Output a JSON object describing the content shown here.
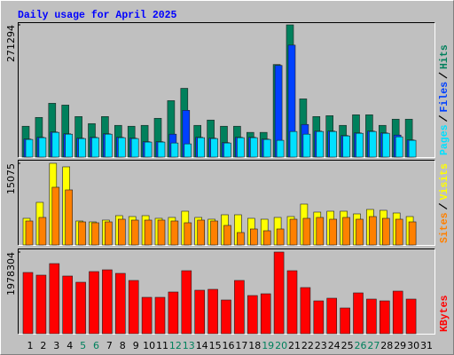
{
  "chart_data": {
    "type": "bar",
    "title": "Daily usage for April 2025",
    "categories": [
      "1",
      "2",
      "3",
      "4",
      "5",
      "6",
      "7",
      "8",
      "9",
      "10",
      "11",
      "12",
      "13",
      "14",
      "15",
      "16",
      "17",
      "18",
      "19",
      "20",
      "21",
      "22",
      "23",
      "24",
      "25",
      "26",
      "27",
      "28",
      "29",
      "30",
      "31"
    ],
    "category_colors": [
      "#000000",
      "#000000",
      "#000000",
      "#000000",
      "#00805C",
      "#00805C",
      "#000000",
      "#000000",
      "#000000",
      "#000000",
      "#000000",
      "#00805C",
      "#00805C",
      "#000000",
      "#000000",
      "#000000",
      "#000000",
      "#000000",
      "#00805C",
      "#00805C",
      "#000000",
      "#000000",
      "#000000",
      "#000000",
      "#000000",
      "#00805C",
      "#00805C",
      "#000000",
      "#000000",
      "#000000",
      "#000000"
    ],
    "panels": [
      {
        "ylim": [
          0,
          271294
        ],
        "yticks": [
          271294
        ],
        "series": [
          {
            "name": "Hits",
            "color": "#00805C",
            "values": [
              63300,
              81400,
              110400,
              106700,
              83200,
              68700,
              83200,
              65100,
              63300,
              65100,
              79600,
              115800,
              141100,
              65100,
              76000,
              63300,
              63300,
              50700,
              50700,
              189900,
              271294,
              119400,
              83200,
              85000,
              65100,
              86800,
              86800,
              65100,
              77800,
              77800,
              null
            ]
          },
          {
            "name": "Files",
            "color": "#0040FF",
            "values": [
              37000,
              40600,
              51500,
              47800,
              38800,
              40600,
              47800,
              40600,
              38800,
              31600,
              31600,
              47000,
              95900,
              40600,
              38800,
              29700,
              40600,
              40600,
              37000,
              188100,
              229700,
              66900,
              53300,
              53300,
              44200,
              49600,
              53300,
              49600,
              45200,
              35200,
              null
            ]
          },
          {
            "name": "Pages",
            "color": "#00E0FF",
            "values": [
              36200,
              39800,
              50700,
              47000,
              38000,
              39800,
              47000,
              39800,
              38000,
              30800,
              30800,
              28900,
              27100,
              39800,
              38000,
              28900,
              39800,
              39800,
              36200,
              34400,
              52500,
              47000,
              52500,
              52500,
              43400,
              48800,
              52500,
              48800,
              41600,
              34400,
              null
            ]
          }
        ]
      },
      {
        "ylim": [
          0,
          15075
        ],
        "yticks": [
          15075
        ],
        "series": [
          {
            "name": "Visits",
            "color": "#FFFF00",
            "values": [
              4917,
              7867,
              15075,
              14423,
              4425,
              4261,
              4589,
              5409,
              5245,
              5409,
              4917,
              5081,
              6228,
              5081,
              4753,
              5573,
              5573,
              4917,
              4753,
              5081,
              5245,
              7539,
              6064,
              6228,
              6228,
              5737,
              6556,
              6392,
              5900,
              5245,
              null
            ]
          },
          {
            "name": "Sites",
            "color": "#FF8000",
            "values": [
              4425,
              5081,
              10654,
              10162,
              4261,
              4098,
              4261,
              4753,
              4589,
              4589,
              4589,
              4425,
              4098,
              4589,
              4425,
              3606,
              2295,
              2950,
              2622,
              2950,
              4753,
              4917,
              5081,
              4753,
              5081,
              4753,
              5245,
              4917,
              4753,
              4261,
              null
            ]
          }
        ]
      },
      {
        "ylim": [
          0,
          1978304
        ],
        "yticks": [
          1978304
        ],
        "series": [
          {
            "name": "KBytes",
            "color": "#FF0000",
            "values": [
              1483700,
              1419200,
              1698700,
              1397700,
              1247200,
              1505200,
              1548200,
              1462200,
              1290200,
              881600,
              881600,
              1010600,
              1526700,
              1053600,
              1075200,
              817100,
              1290200,
              924600,
              967600,
              1978304,
              1526700,
              1118200,
              795600,
              860100,
              623600,
              989100,
              838600,
              795600,
              1032100,
              838600,
              null
            ]
          }
        ]
      }
    ]
  }
}
